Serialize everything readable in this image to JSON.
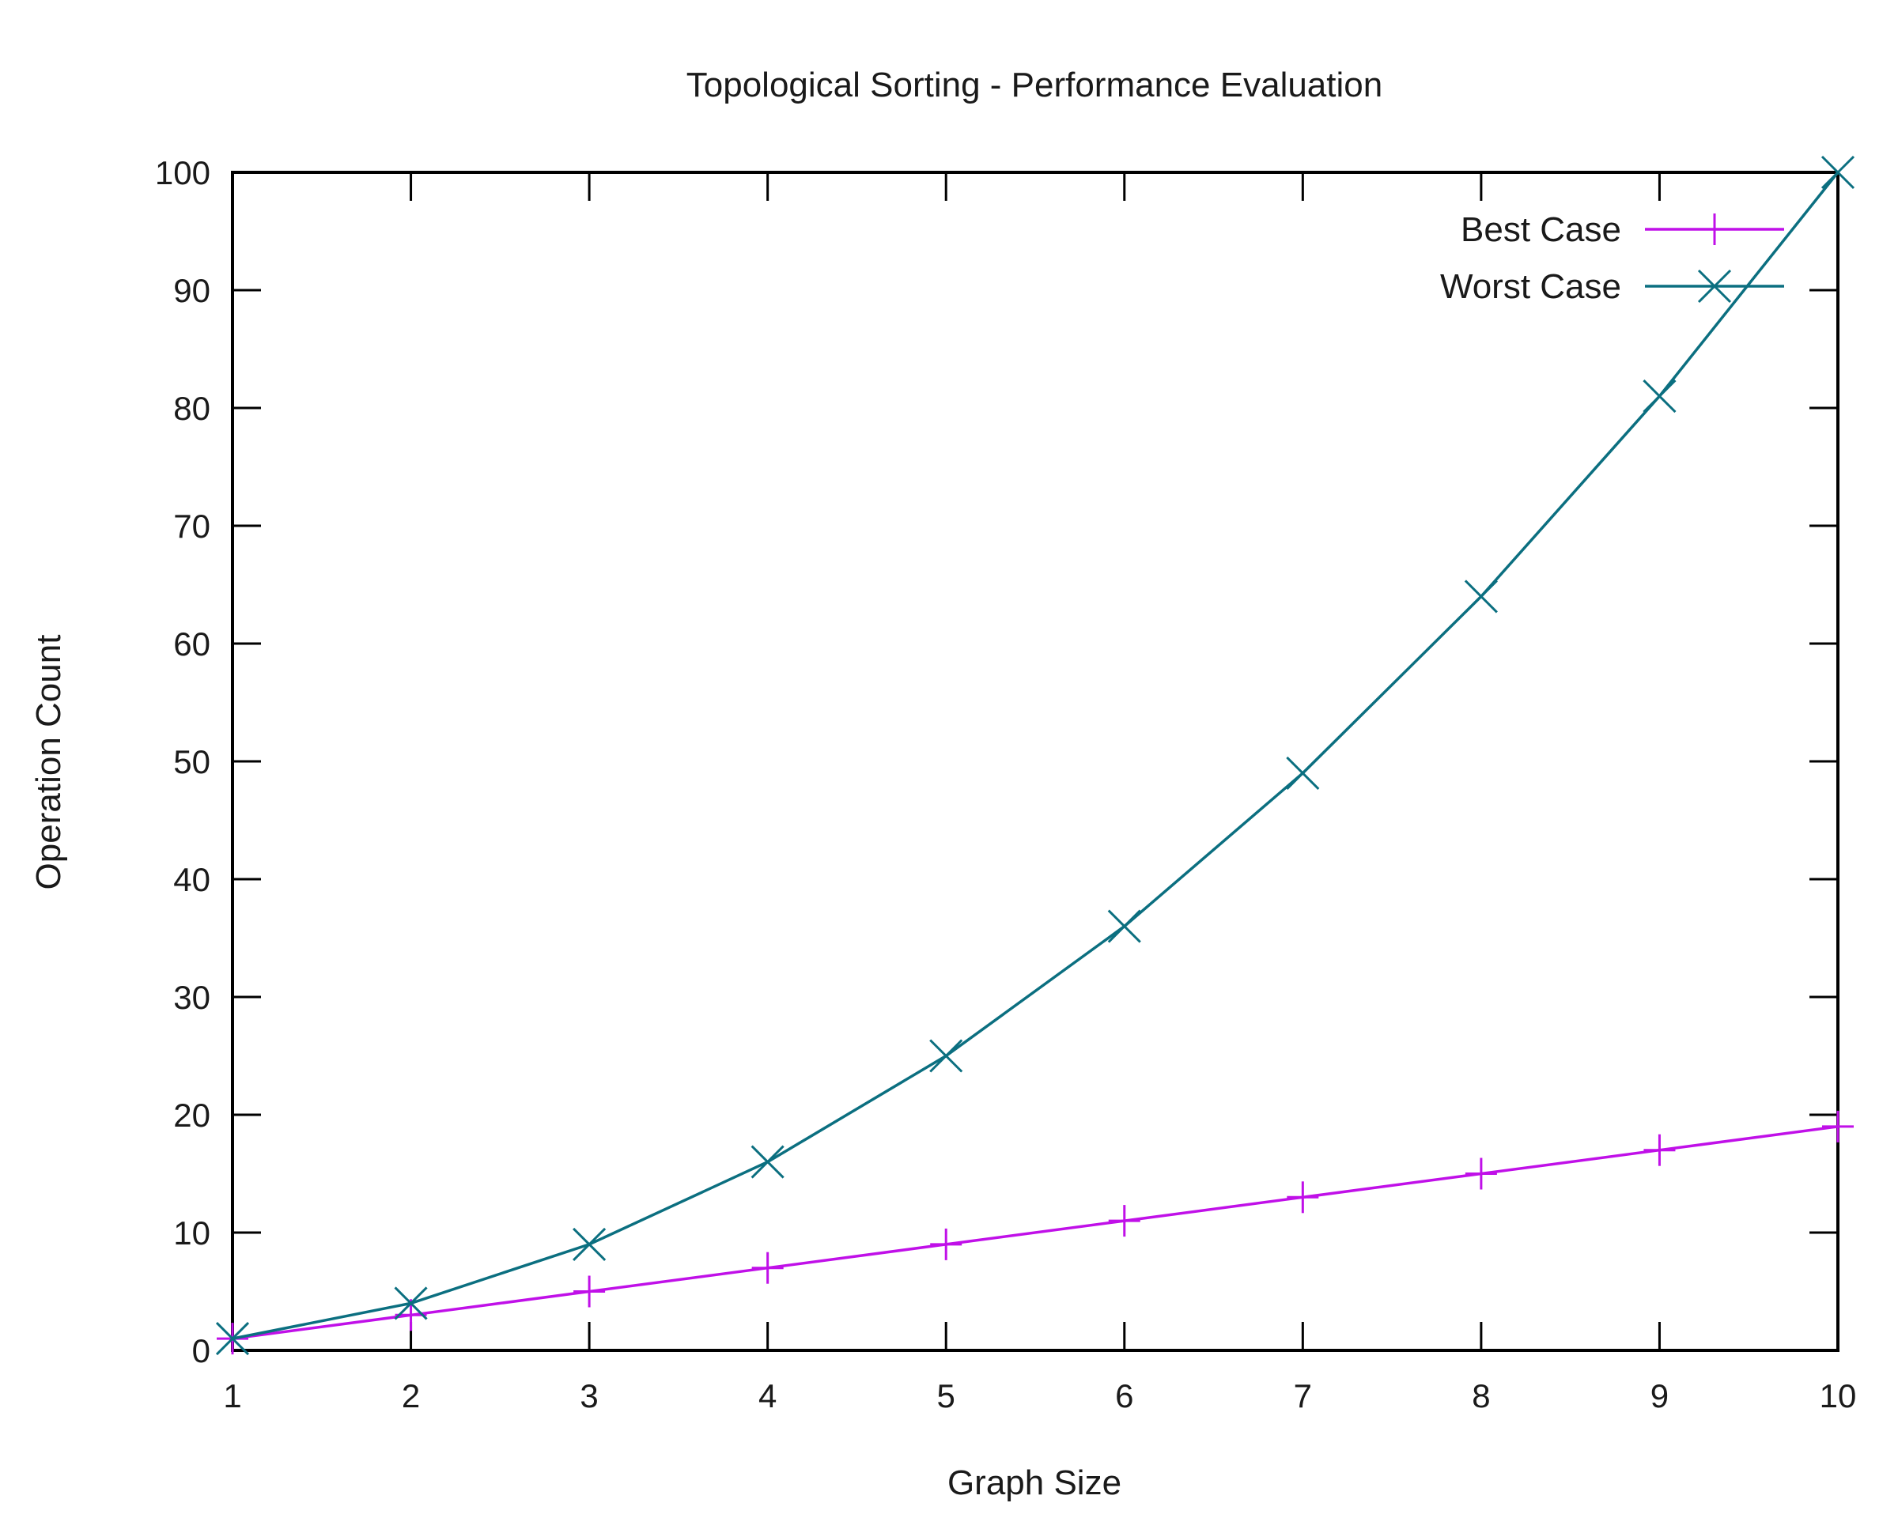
{
  "chart_data": {
    "type": "line",
    "title": "Topological Sorting - Performance Evaluation",
    "xlabel": "Graph Size",
    "ylabel": "Operation Count",
    "xlim": [
      1,
      10
    ],
    "ylim": [
      0,
      100
    ],
    "xticks": [
      1,
      2,
      3,
      4,
      5,
      6,
      7,
      8,
      9,
      10
    ],
    "yticks": [
      0,
      10,
      20,
      30,
      40,
      50,
      60,
      70,
      80,
      90,
      100
    ],
    "grid": false,
    "legend": "top-right",
    "x": [
      1,
      2,
      3,
      4,
      5,
      6,
      7,
      8,
      9,
      10
    ],
    "series": [
      {
        "name": "Best Case",
        "values": [
          1,
          3,
          5,
          7,
          9,
          11,
          13,
          15,
          17,
          19
        ],
        "color": "#c010e8",
        "marker": "plus"
      },
      {
        "name": "Worst Case",
        "values": [
          1,
          4,
          9,
          16,
          25,
          36,
          49,
          64,
          81,
          100
        ],
        "color": "#0b6f80",
        "marker": "cross"
      }
    ]
  }
}
